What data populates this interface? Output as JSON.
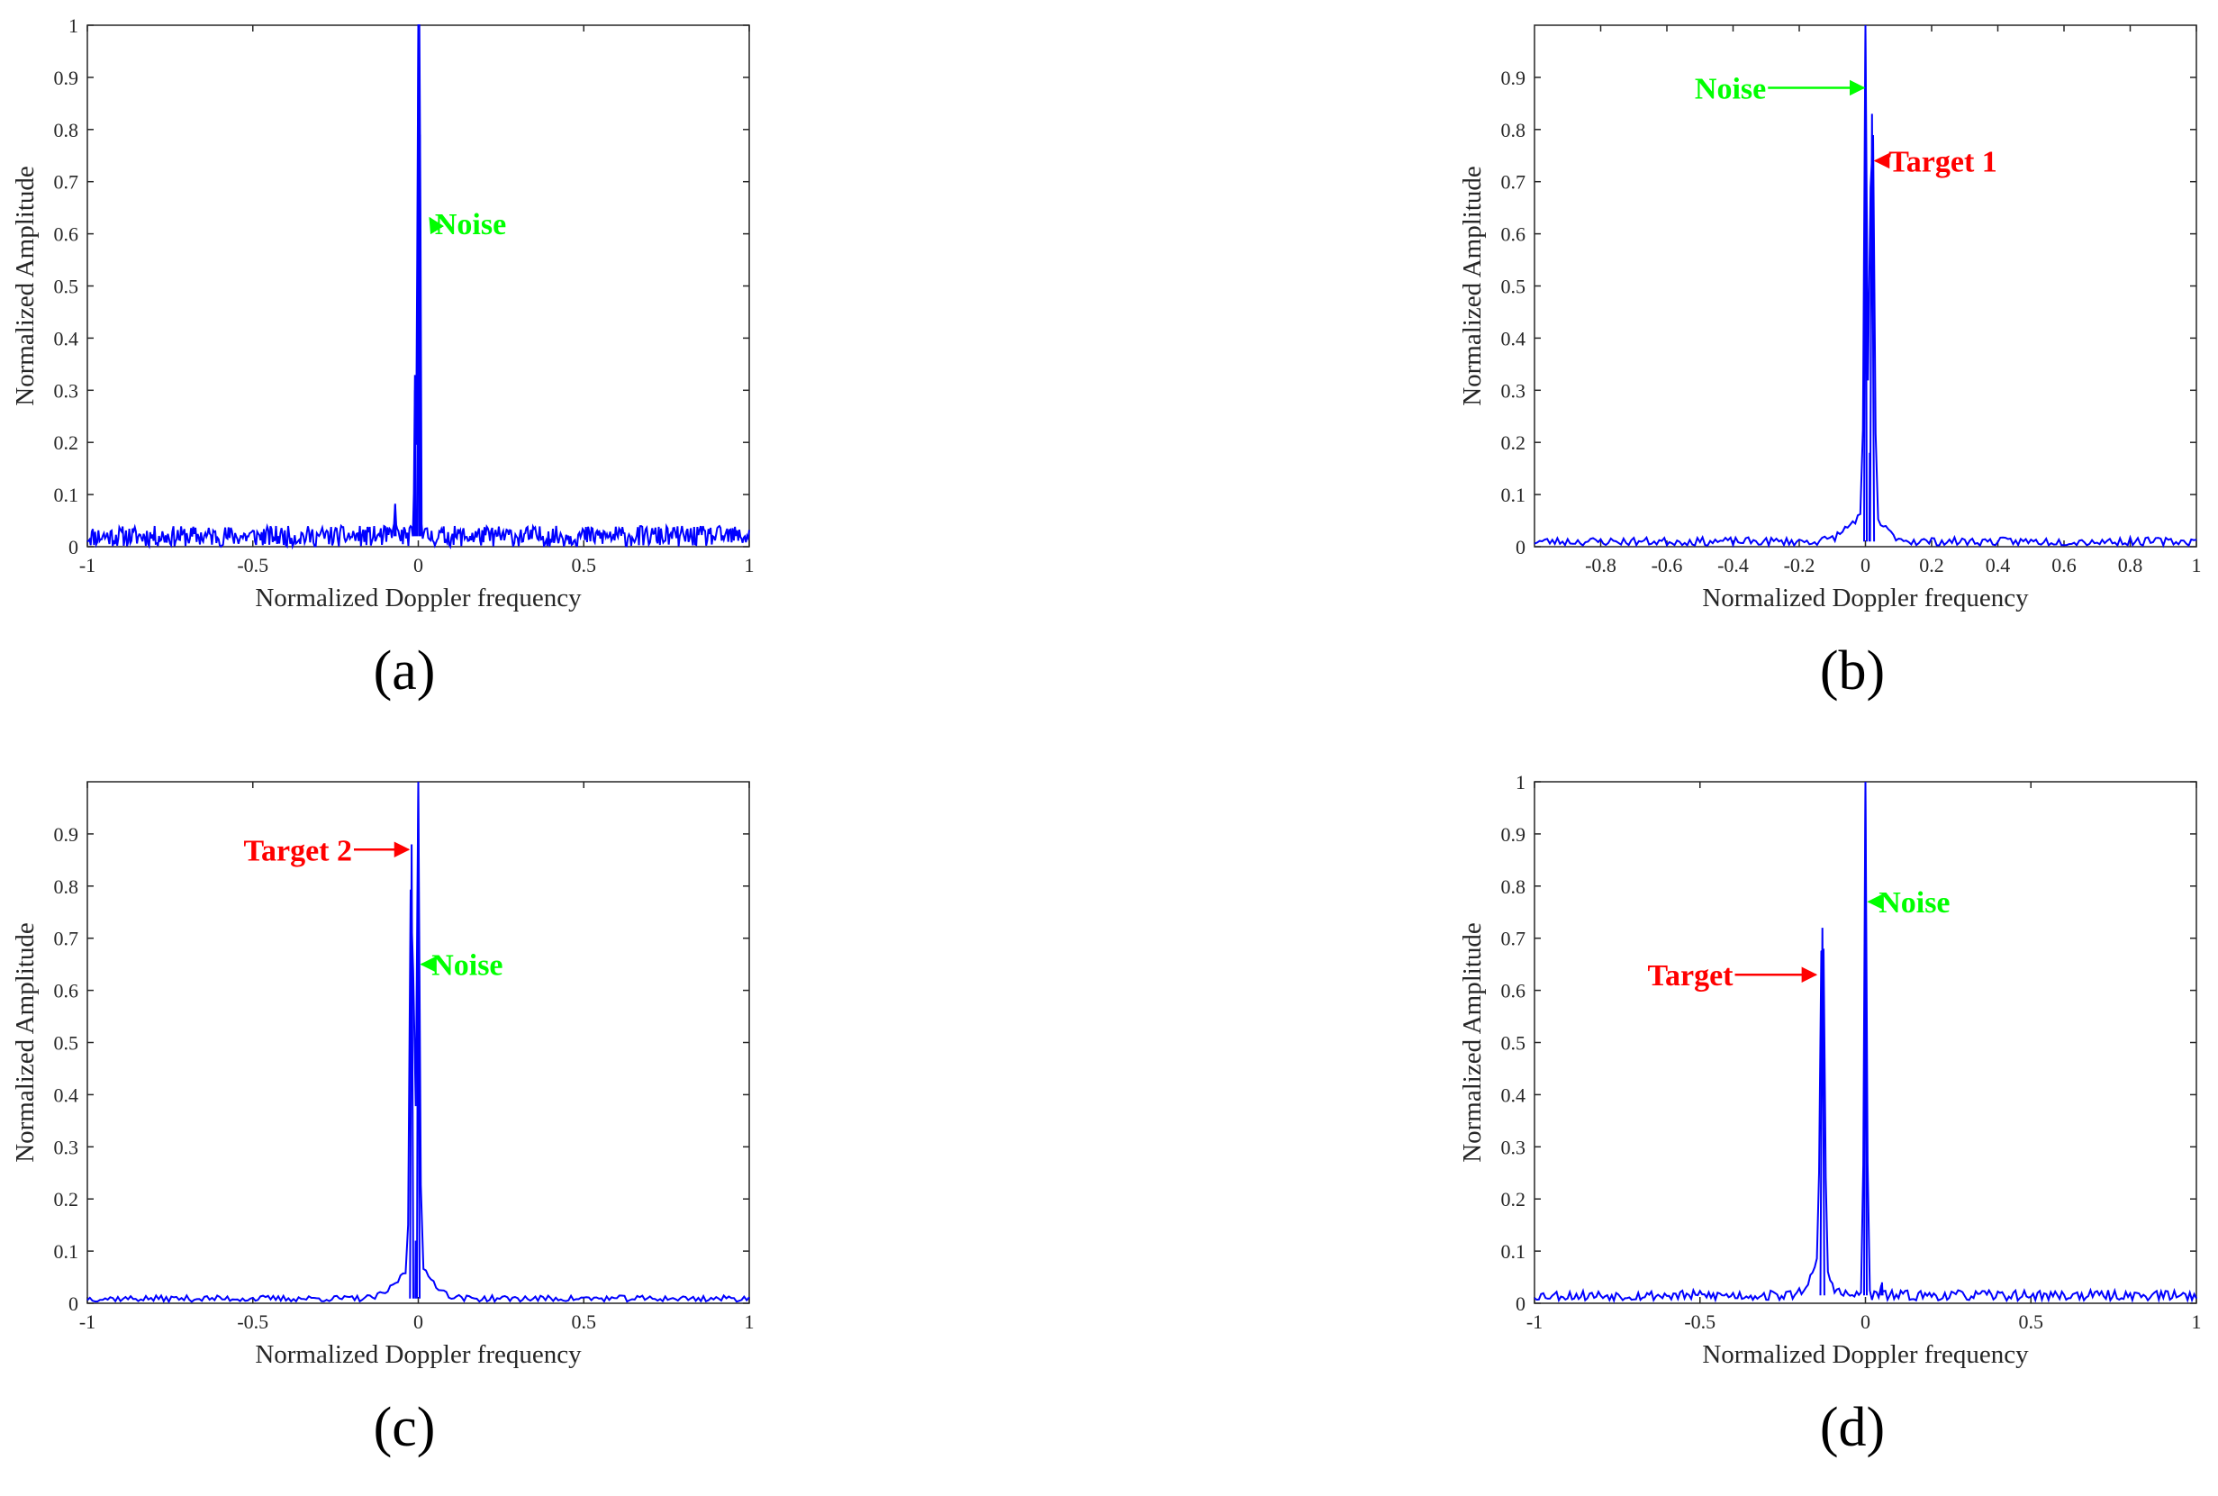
{
  "figure": {
    "panels": [
      {
        "id": "a",
        "caption": "(a)"
      },
      {
        "id": "b",
        "caption": "(b)"
      },
      {
        "id": "c",
        "caption": "(c)"
      },
      {
        "id": "d",
        "caption": "(d)"
      }
    ]
  },
  "colors": {
    "series": "#0000ff",
    "noise_annotation": "#00ff00",
    "target_annotation": "#ff0000",
    "axis": "#262626"
  },
  "chart_data": [
    {
      "panel": "a",
      "type": "line",
      "xlabel": "Normalized Doppler frequency",
      "ylabel": "Normalized Amplitude",
      "xlim": [
        -1,
        1
      ],
      "ylim": [
        0,
        1
      ],
      "xticks": [
        -1,
        -0.5,
        0,
        0.5,
        1
      ],
      "xtick_labels": [
        "-1",
        "-0.5",
        "0",
        "0.5",
        "1"
      ],
      "yticks": [
        0,
        0.1,
        0.2,
        0.3,
        0.4,
        0.5,
        0.6,
        0.7,
        0.8,
        0.9,
        1
      ],
      "ytick_labels": [
        "0",
        "0.1",
        "0.2",
        "0.3",
        "0.4",
        "0.5",
        "0.6",
        "0.7",
        "0.8",
        "0.9",
        "1"
      ],
      "grid": false,
      "series": {
        "noise_floor": 0.02,
        "noise_spread": 0.02,
        "samples": 600,
        "seed": 11,
        "peaks": [
          {
            "x": -0.07,
            "y": 0.08,
            "w": 0.002
          },
          {
            "x": -0.01,
            "y": 0.3,
            "w": 0.002
          },
          {
            "x": 0.0,
            "y": 1.0,
            "w": 0.003
          },
          {
            "x": 0.005,
            "y": 0.79,
            "w": 0.002
          }
        ]
      },
      "annotations": [
        {
          "text": "Noise",
          "color": "noise",
          "x": 0.05,
          "y": 0.62,
          "arrow_to": [
            0.035,
            0.63
          ],
          "direction": "left"
        }
      ]
    },
    {
      "panel": "b",
      "type": "line",
      "xlabel": "Normalized Doppler frequency",
      "ylabel": "Normalized Amplitude",
      "xlim": [
        -1,
        1
      ],
      "ylim": [
        0,
        1
      ],
      "xticks": [
        -0.8,
        -0.6,
        -0.4,
        -0.2,
        0,
        0.2,
        0.4,
        0.6,
        0.8,
        1
      ],
      "xtick_labels": [
        "-0.8",
        "-0.6",
        "-0.4",
        "-0.2",
        "0",
        "0.2",
        "0.4",
        "0.6",
        "0.8",
        "1"
      ],
      "yticks": [
        0,
        0.1,
        0.2,
        0.3,
        0.4,
        0.5,
        0.6,
        0.7,
        0.8,
        0.9
      ],
      "ytick_labels": [
        "0",
        "0.1",
        "0.2",
        "0.3",
        "0.4",
        "0.5",
        "0.6",
        "0.7",
        "0.8",
        "0.9"
      ],
      "grid": false,
      "series": {
        "noise_floor": 0.01,
        "noise_spread": 0.008,
        "samples": 260,
        "seed": 23,
        "peaks": [
          {
            "x": 0.0,
            "y": 1.0,
            "w": 0.004
          },
          {
            "x": 0.013,
            "y": 0.18,
            "w": 0.001
          },
          {
            "x": 0.02,
            "y": 0.83,
            "w": 0.006
          },
          {
            "x": 0.0,
            "y": 0.05,
            "w": 0.05
          }
        ]
      },
      "annotations": [
        {
          "text": "Noise",
          "color": "noise",
          "x": -0.3,
          "y": 0.88,
          "arrow_to": [
            -0.005,
            0.88
          ],
          "direction": "right"
        },
        {
          "text": "Target 1",
          "color": "target",
          "x": 0.07,
          "y": 0.74,
          "arrow_to": [
            0.03,
            0.74
          ],
          "direction": "left"
        }
      ]
    },
    {
      "panel": "c",
      "type": "line",
      "xlabel": "Normalized Doppler frequency",
      "ylabel": "Normalized Amplitude",
      "xlim": [
        -1,
        1
      ],
      "ylim": [
        0,
        1
      ],
      "xticks": [
        -1,
        -0.5,
        0,
        0.5,
        1
      ],
      "xtick_labels": [
        "-1",
        "-0.5",
        "0",
        "0.5",
        "1"
      ],
      "yticks": [
        0,
        0.1,
        0.2,
        0.3,
        0.4,
        0.5,
        0.6,
        0.7,
        0.8,
        0.9
      ],
      "ytick_labels": [
        "0",
        "0.1",
        "0.2",
        "0.3",
        "0.4",
        "0.5",
        "0.6",
        "0.7",
        "0.8",
        "0.9"
      ],
      "grid": false,
      "series": {
        "noise_floor": 0.009,
        "noise_spread": 0.006,
        "samples": 260,
        "seed": 37,
        "peaks": [
          {
            "x": -0.02,
            "y": 0.88,
            "w": 0.005
          },
          {
            "x": -0.008,
            "y": 0.12,
            "w": 0.001
          },
          {
            "x": 0.0,
            "y": 1.0,
            "w": 0.004
          },
          {
            "x": -0.01,
            "y": 0.06,
            "w": 0.05
          }
        ]
      },
      "annotations": [
        {
          "text": "Target 2",
          "color": "target",
          "x": -0.2,
          "y": 0.87,
          "arrow_to": [
            -0.03,
            0.87
          ],
          "direction": "right"
        },
        {
          "text": "Noise",
          "color": "noise",
          "x": 0.04,
          "y": 0.65,
          "arrow_to": [
            0.01,
            0.65
          ],
          "direction": "left"
        }
      ]
    },
    {
      "panel": "d",
      "type": "line",
      "xlabel": "Normalized Doppler frequency",
      "ylabel": "Normalized Amplitude",
      "xlim": [
        -1,
        1
      ],
      "ylim": [
        0,
        1
      ],
      "xticks": [
        -1,
        -0.5,
        0,
        0.5,
        1
      ],
      "xtick_labels": [
        "-1",
        "-0.5",
        "0",
        "0.5",
        "1"
      ],
      "yticks": [
        0,
        0.1,
        0.2,
        0.3,
        0.4,
        0.5,
        0.6,
        0.7,
        0.8,
        0.9,
        1
      ],
      "ytick_labels": [
        "0",
        "0.1",
        "0.2",
        "0.3",
        "0.4",
        "0.5",
        "0.6",
        "0.7",
        "0.8",
        "0.9",
        "1"
      ],
      "grid": false,
      "series": {
        "noise_floor": 0.015,
        "noise_spread": 0.01,
        "samples": 300,
        "seed": 53,
        "peaks": [
          {
            "x": -0.13,
            "y": 0.72,
            "w": 0.006
          },
          {
            "x": -0.14,
            "y": 0.05,
            "w": 0.03
          },
          {
            "x": 0.0,
            "y": 1.0,
            "w": 0.004
          },
          {
            "x": 0.05,
            "y": 0.04,
            "w": 0.002
          }
        ]
      },
      "annotations": [
        {
          "text": "Target",
          "color": "target",
          "x": -0.4,
          "y": 0.63,
          "arrow_to": [
            -0.15,
            0.63
          ],
          "direction": "right"
        },
        {
          "text": "Noise",
          "color": "noise",
          "x": 0.04,
          "y": 0.77,
          "arrow_to": [
            0.01,
            0.77
          ],
          "direction": "left"
        }
      ]
    }
  ]
}
